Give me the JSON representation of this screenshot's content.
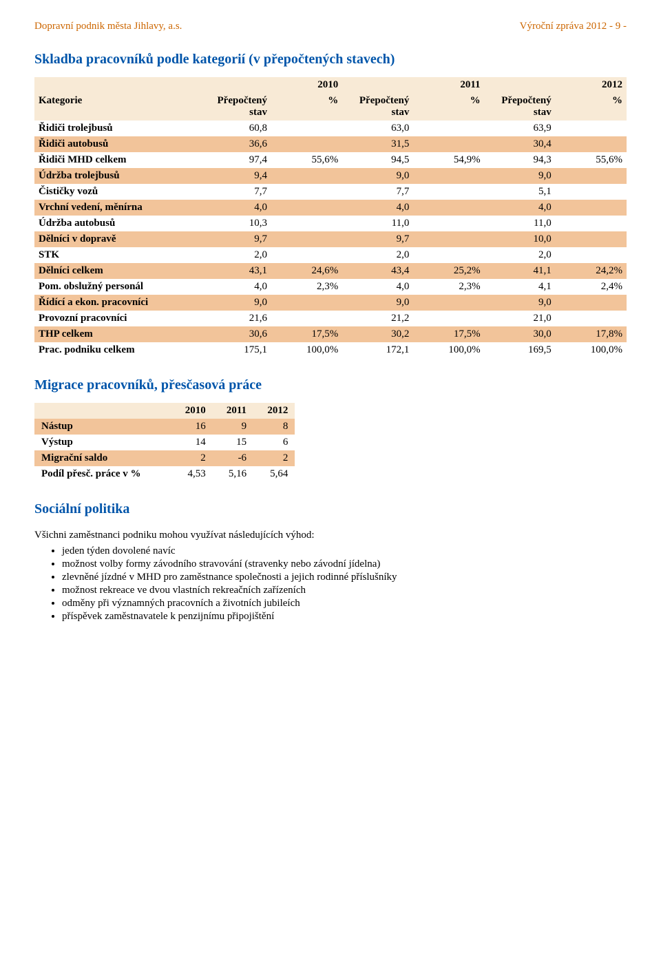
{
  "header": {
    "left": "Dopravní podnik města Jihlavy, a.s.",
    "right": "Výroční zpráva 2012     - 9 -"
  },
  "section1": {
    "title": "Skladba pracovníků podle kategorií (v přepočtených stavech)",
    "years": [
      "2010",
      "2011",
      "2012"
    ],
    "col_kategorie": "Kategorie",
    "col_prepocteny": "Přepočtený stav",
    "col_pct": "%",
    "rows": [
      {
        "label": "Řidiči trolejbusů",
        "hl": false,
        "v": [
          "60,8",
          "",
          "63,0",
          "",
          "63,9",
          ""
        ]
      },
      {
        "label": "Řidiči autobusů",
        "hl": true,
        "v": [
          "36,6",
          "",
          "31,5",
          "",
          "30,4",
          ""
        ]
      },
      {
        "label": "Řidiči MHD celkem",
        "hl": false,
        "v": [
          "97,4",
          "55,6%",
          "94,5",
          "54,9%",
          "94,3",
          "55,6%"
        ]
      },
      {
        "label": "Údržba trolejbusů",
        "hl": true,
        "v": [
          "9,4",
          "",
          "9,0",
          "",
          "9,0",
          ""
        ]
      },
      {
        "label": "Čističky vozů",
        "hl": false,
        "v": [
          "7,7",
          "",
          "7,7",
          "",
          "5,1",
          ""
        ]
      },
      {
        "label": "Vrchní vedení, měnírna",
        "hl": true,
        "v": [
          "4,0",
          "",
          "4,0",
          "",
          "4,0",
          ""
        ]
      },
      {
        "label": "Údržba autobusů",
        "hl": false,
        "v": [
          "10,3",
          "",
          "11,0",
          "",
          "11,0",
          ""
        ]
      },
      {
        "label": "Dělníci v dopravě",
        "hl": true,
        "v": [
          "9,7",
          "",
          "9,7",
          "",
          "10,0",
          ""
        ]
      },
      {
        "label": "STK",
        "hl": false,
        "v": [
          "2,0",
          "",
          "2,0",
          "",
          "2,0",
          ""
        ]
      },
      {
        "label": "Dělníci celkem",
        "hl": true,
        "v": [
          "43,1",
          "24,6%",
          "43,4",
          "25,2%",
          "41,1",
          "24,2%"
        ]
      },
      {
        "label": "Pom. obslužný personál",
        "hl": false,
        "v": [
          "4,0",
          "2,3%",
          "4,0",
          "2,3%",
          "4,1",
          "2,4%"
        ]
      },
      {
        "label": "Řídící a ekon. pracovníci",
        "hl": true,
        "v": [
          "9,0",
          "",
          "9,0",
          "",
          "9,0",
          ""
        ]
      },
      {
        "label": "Provozní pracovníci",
        "hl": false,
        "v": [
          "21,6",
          "",
          "21,2",
          "",
          "21,0",
          ""
        ]
      },
      {
        "label": "THP celkem",
        "hl": true,
        "v": [
          "30,6",
          "17,5%",
          "30,2",
          "17,5%",
          "30,0",
          "17,8%"
        ]
      },
      {
        "label": "Prac. podniku celkem",
        "hl": false,
        "v": [
          "175,1",
          "100,0%",
          "172,1",
          "100,0%",
          "169,5",
          "100,0%"
        ]
      }
    ],
    "style": {
      "highlight_bg": "#f2c49a",
      "head_bg": "#f8ead6",
      "label_width_pct": 28,
      "value_col_width_pct": 12
    }
  },
  "section2": {
    "title": "Migrace pracovníků, přesčasová práce",
    "years": [
      "2010",
      "2011",
      "2012"
    ],
    "rows": [
      {
        "label": "Nástup",
        "hl": true,
        "v": [
          "16",
          "9",
          "8"
        ]
      },
      {
        "label": "Výstup",
        "hl": false,
        "v": [
          "14",
          "15",
          "6"
        ]
      },
      {
        "label": "Migrační saldo",
        "hl": true,
        "v": [
          "2",
          "-6",
          "2"
        ]
      },
      {
        "label": "Podíl přesč. práce v %",
        "hl": false,
        "v": [
          "4,53",
          "5,16",
          "5,64"
        ]
      }
    ]
  },
  "section3": {
    "title": "Sociální politika",
    "intro": "Všichni zaměstnanci podniku mohou využívat následujících výhod:",
    "bullets": [
      "jeden týden dovolené navíc",
      "možnost volby formy závodního stravování (stravenky nebo závodní jídelna)",
      "zlevněné jízdné v MHD pro zaměstnance společnosti a jejich rodinné příslušníky",
      "možnost rekreace ve dvou vlastních rekreačních zařízeních",
      "odměny při významných pracovních a životních jubileích",
      "příspěvek zaměstnavatele k penzijnímu připojištění"
    ]
  }
}
